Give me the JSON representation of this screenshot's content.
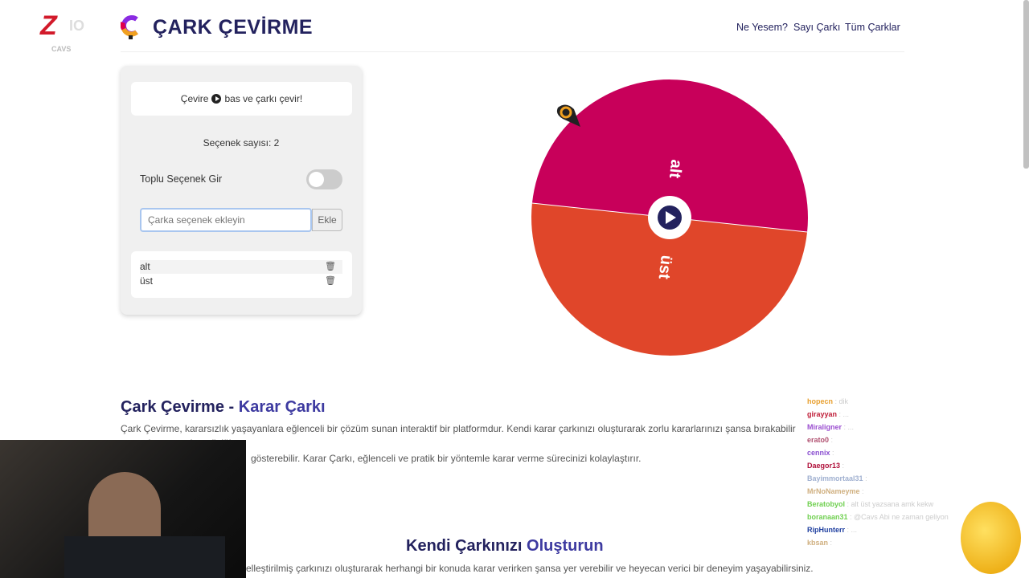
{
  "header": {
    "title": "ÇARK ÇEVİRME",
    "nav": [
      "Ne Yesem?",
      "Sayı Çarkı",
      "Tüm Çarklar"
    ]
  },
  "panel": {
    "hint_before": "Çevire",
    "hint_after": "bas ve çarkı çevir!",
    "count_label": "Seçenek sayısı: 2",
    "bulk_toggle_label": "Toplu Seçenek Gir",
    "bulk_toggle_on": false,
    "input_placeholder": "Çarka seçenek ekleyin",
    "input_value": "",
    "add_button": "Ekle",
    "options": [
      "alt",
      "üst"
    ]
  },
  "wheel": {
    "segments": [
      {
        "label": "alt",
        "color": "#c8005a"
      },
      {
        "label": "üst",
        "color": "#e0462a"
      }
    ]
  },
  "content": {
    "heading1_a": "Çark Çevirme - ",
    "heading1_b": "Karar Çarkı",
    "para1_line1": "Çark Çevirme, kararsızlık yaşayanlara eğlenceli bir çözüm sunan interaktif bir platformdur. Kendi karar çarkınızı oluşturarak zorlu kararlarınızı şansa bırakabilir ve seçim yapmakta güçlük",
    "para1_line2": "gösterebilir. Karar Çarkı, eğlenceli ve pratik bir yöntemle karar verme sürecinizi kolaylaştırır.",
    "heading2_a": "Kendi Çarkınızı ",
    "heading2_b": "Oluşturun",
    "para2": "elleştirilmiş çarkınızı oluşturarak herhangi bir konuda karar verirken şansa yer verebilir ve heyecan verici bir deneyim yaşayabilirsiniz."
  },
  "overlay": {
    "streamer_logo": "ZIO CAVS",
    "chat": [
      {
        "user": "hopecn",
        "color": "#e8a030",
        "msg": ": dik"
      },
      {
        "user": "girayyan",
        "color": "#c0203a",
        "msg": ": ..."
      },
      {
        "user": "Miraligner",
        "color": "#9b4fd0",
        "msg": ": ..."
      },
      {
        "user": "erato0",
        "color": "#b05070",
        "msg": ":"
      },
      {
        "user": "cennix",
        "color": "#8a4fd0",
        "msg": ":"
      },
      {
        "user": "Daegor13",
        "color": "#b0103a",
        "msg": ":"
      },
      {
        "user": "Bayimmortaal31",
        "color": "#a0b0d0",
        "msg": ":"
      },
      {
        "user": "MrNoNameyme",
        "color": "#d0b080",
        "msg": ":"
      },
      {
        "user": "Beratobyol",
        "color": "#70d050",
        "msg": ": alt üst yazsana amk kekw"
      },
      {
        "user": "boranaan31",
        "color": "#70d050",
        "msg": ": @Cavs Abi ne zaman geliyon"
      },
      {
        "user": "RipHunterr",
        "color": "#2040a0",
        "msg": ": ..."
      },
      {
        "user": "kbsan",
        "color": "#d0b080",
        "msg": ":"
      }
    ]
  }
}
